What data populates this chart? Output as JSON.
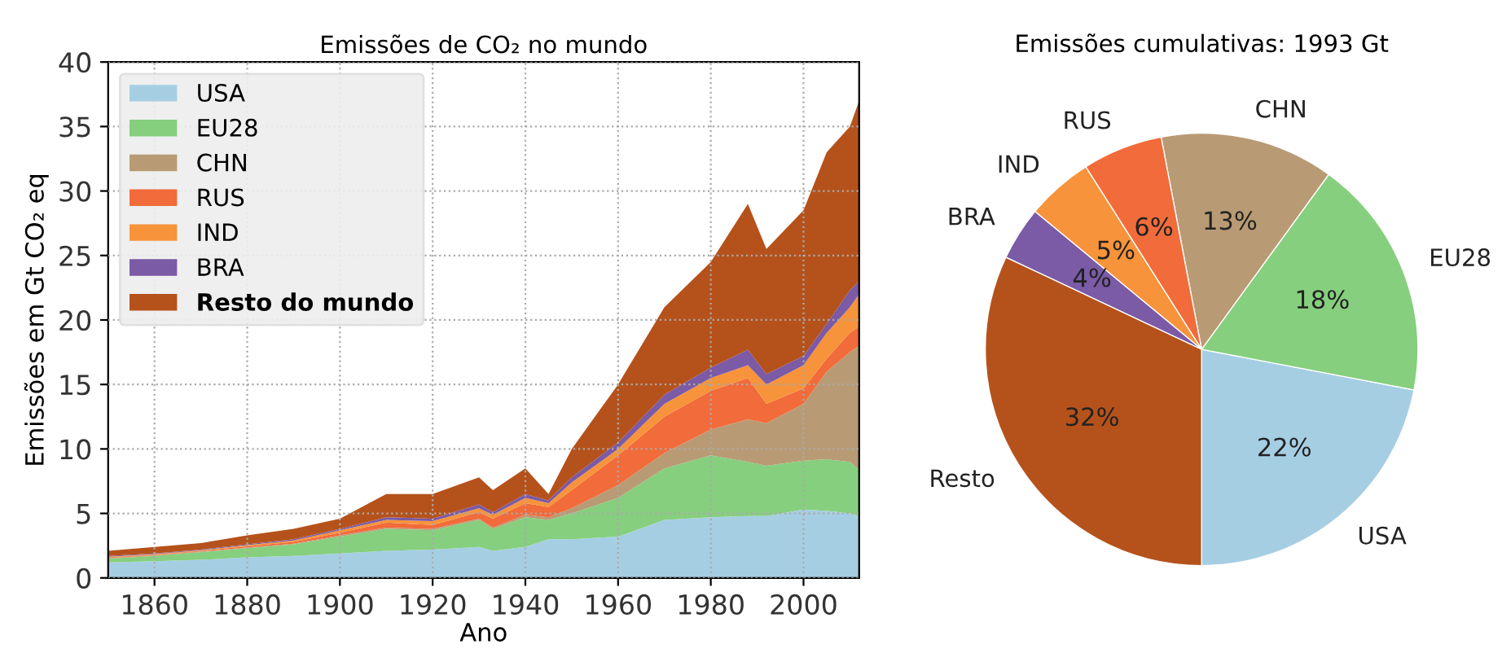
{
  "chart_data": [
    {
      "type": "area",
      "stacked": true,
      "title": "Emissões de CO₂ no mundo",
      "xlabel": "Ano",
      "ylabel": "Emissões em Gt CO₂ eq",
      "x": [
        1850,
        1860,
        1870,
        1880,
        1890,
        1900,
        1910,
        1920,
        1930,
        1933,
        1940,
        1945,
        1950,
        1960,
        1970,
        1980,
        1988,
        1992,
        2000,
        2005,
        2010,
        2012
      ],
      "series": [
        {
          "name": "USA",
          "color": "#a6cee3",
          "values": [
            1.2,
            1.3,
            1.4,
            1.6,
            1.7,
            1.9,
            2.1,
            2.2,
            2.4,
            2.1,
            2.4,
            3.0,
            3.0,
            3.2,
            4.5,
            4.7,
            4.8,
            4.8,
            5.3,
            5.2,
            5.0,
            4.8
          ]
        },
        {
          "name": "EU28",
          "color": "#86cf7e",
          "values": [
            0.3,
            0.4,
            0.6,
            0.7,
            0.9,
            1.3,
            1.7,
            1.5,
            2.1,
            1.7,
            2.3,
            1.5,
            2.0,
            3.0,
            4.0,
            4.8,
            4.2,
            3.9,
            3.8,
            4.0,
            4.0,
            3.6
          ]
        },
        {
          "name": "CHN",
          "color": "#b89b74",
          "values": [
            0.05,
            0.05,
            0.05,
            0.05,
            0.05,
            0.1,
            0.1,
            0.1,
            0.1,
            0.1,
            0.2,
            0.2,
            0.4,
            1.0,
            1.2,
            2.0,
            3.3,
            3.3,
            4.4,
            6.8,
            8.5,
            9.6
          ]
        },
        {
          "name": "RUS",
          "color": "#f26b3a",
          "values": [
            0.05,
            0.05,
            0.05,
            0.1,
            0.15,
            0.2,
            0.4,
            0.3,
            0.5,
            0.7,
            0.9,
            0.8,
            1.4,
            2.3,
            2.8,
            3.0,
            3.2,
            1.5,
            1.2,
            1.0,
            1.5,
            1.5
          ]
        },
        {
          "name": "IND",
          "color": "#f7933a",
          "values": [
            0.05,
            0.05,
            0.05,
            0.1,
            0.1,
            0.2,
            0.2,
            0.3,
            0.3,
            0.3,
            0.4,
            0.3,
            0.6,
            0.5,
            1.0,
            1.0,
            1.0,
            1.5,
            1.8,
            2.0,
            2.0,
            2.5
          ]
        },
        {
          "name": "BRA",
          "color": "#7b5aa6",
          "values": [
            0.05,
            0.05,
            0.05,
            0.05,
            0.1,
            0.1,
            0.2,
            0.2,
            0.3,
            0.2,
            0.3,
            0.2,
            0.4,
            0.5,
            0.7,
            0.8,
            1.2,
            0.8,
            0.7,
            0.7,
            1.3,
            1.0
          ]
        },
        {
          "name": "Resto do mundo",
          "color": "#b5521b",
          "values": [
            0.4,
            0.5,
            0.5,
            0.7,
            0.8,
            0.8,
            1.8,
            1.9,
            2.1,
            1.7,
            2.0,
            0.5,
            2.2,
            4.5,
            6.8,
            8.2,
            11.3,
            9.7,
            11.3,
            13.3,
            12.7,
            14.0
          ]
        }
      ],
      "xlim": [
        1850,
        2012
      ],
      "xticks": [
        1860,
        1880,
        1900,
        1920,
        1940,
        1960,
        1980,
        2000
      ],
      "ylim": [
        0,
        40
      ],
      "yticks": [
        0,
        5,
        10,
        15,
        20,
        25,
        30,
        35,
        40
      ],
      "grid": true,
      "legend": "top left"
    },
    {
      "type": "pie",
      "title": "Emissões cumulativas: 1993 Gt",
      "categories": [
        "USA",
        "EU28",
        "CHN",
        "RUS",
        "IND",
        "BRA",
        "Resto"
      ],
      "values": [
        22,
        18,
        13,
        6,
        5,
        4,
        32
      ],
      "value_labels": [
        "22%",
        "18%",
        "13%",
        "6%",
        "5%",
        "4%",
        "32%"
      ],
      "colors": [
        "#a6cee3",
        "#86cf7e",
        "#b89b74",
        "#f26b3a",
        "#f7933a",
        "#7b5aa6",
        "#b5521b"
      ]
    }
  ]
}
